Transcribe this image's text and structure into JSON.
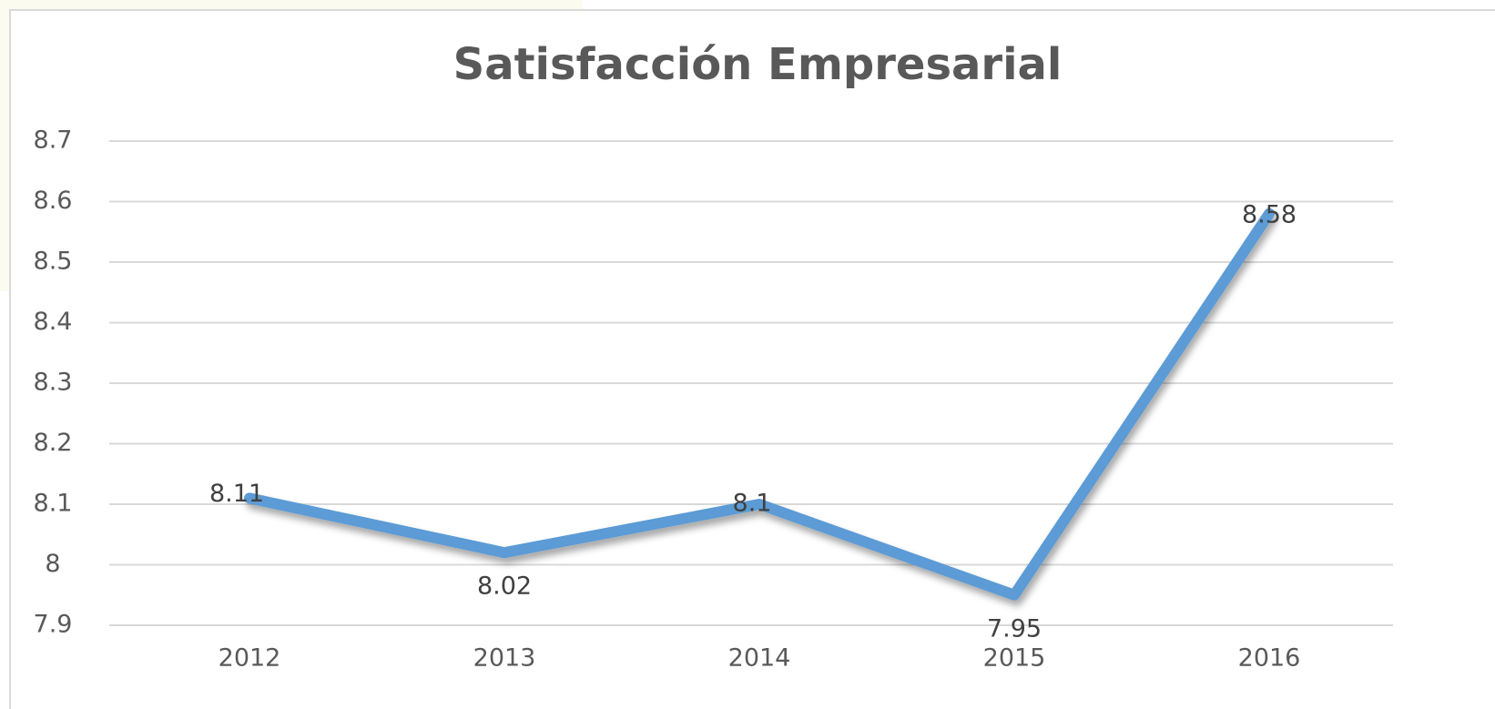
{
  "chart_data": {
    "type": "line",
    "title": "Satisfacción Empresarial",
    "categories": [
      "2012",
      "2013",
      "2014",
      "2015",
      "2016"
    ],
    "series": [
      {
        "name": "Satisfacción Empresarial",
        "color": "#5b9bd5",
        "values": [
          8.11,
          8.02,
          8.1,
          7.95,
          8.58
        ]
      }
    ],
    "ylim": [
      7.9,
      8.7
    ],
    "yticks": [
      7.9,
      8,
      8.1,
      8.2,
      8.3,
      8.4,
      8.5,
      8.6,
      8.7
    ],
    "grid": true,
    "data_labels": true
  }
}
